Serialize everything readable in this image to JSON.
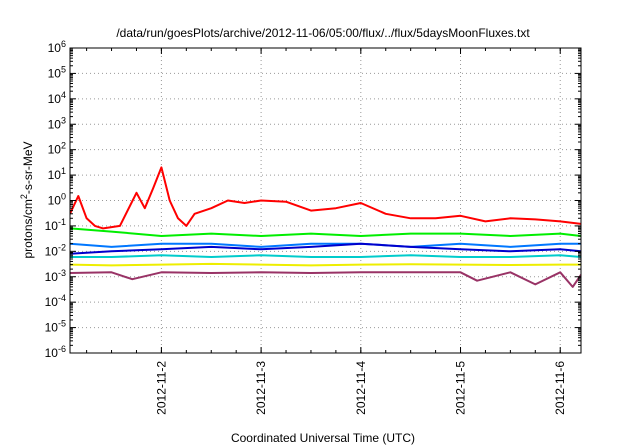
{
  "chart_data": {
    "type": "line",
    "title": "/data/run/goesPlots/archive/2012-11-06/05:00/flux/../flux/5daysMoonFluxes.txt",
    "xlabel": "Coordinated Universal Time (UTC)",
    "ylabel": {
      "base": "protons/cm",
      "sup": "2",
      "rest": "-s-sr-MeV"
    },
    "yscale": "log",
    "ylim_exponent": [
      -6,
      6
    ],
    "xlim": [
      "2012-11-01 02:00",
      "2012-11-06 05:00"
    ],
    "x_ticks": [
      {
        "label": "2012-11-2",
        "date": "2012-11-02"
      },
      {
        "label": "2012-11-3",
        "date": "2012-11-03"
      },
      {
        "label": "2012-11-4",
        "date": "2012-11-04"
      },
      {
        "label": "2012-11-5",
        "date": "2012-11-05"
      },
      {
        "label": "2012-11-6",
        "date": "2012-11-06"
      }
    ],
    "y_ticks": [
      {
        "base": "10",
        "exp": "-6"
      },
      {
        "base": "10",
        "exp": "-5"
      },
      {
        "base": "10",
        "exp": "-4"
      },
      {
        "base": "10",
        "exp": "-3"
      },
      {
        "base": "10",
        "exp": "-2"
      },
      {
        "base": "10",
        "exp": "-1"
      },
      {
        "base": "10",
        "exp": "0"
      },
      {
        "base": "10",
        "exp": "1"
      },
      {
        "base": "10",
        "exp": "2"
      },
      {
        "base": "10",
        "exp": "3"
      },
      {
        "base": "10",
        "exp": "4"
      },
      {
        "base": "10",
        "exp": "5"
      },
      {
        "base": "10",
        "exp": "6"
      }
    ],
    "grid": true,
    "legend": "none",
    "series": [
      {
        "color": "#ff0000",
        "x": [
          "2012-11-01 02:00",
          "2012-11-01 04:00",
          "2012-11-01 06:00",
          "2012-11-01 08:00",
          "2012-11-01 10:00",
          "2012-11-01 14:00",
          "2012-11-01 18:00",
          "2012-11-01 20:00",
          "2012-11-01 22:00",
          "2012-11-02 00:00",
          "2012-11-02 02:00",
          "2012-11-02 04:00",
          "2012-11-02 06:00",
          "2012-11-02 08:00",
          "2012-11-02 12:00",
          "2012-11-02 16:00",
          "2012-11-02 20:00",
          "2012-11-03 00:00",
          "2012-11-03 06:00",
          "2012-11-03 12:00",
          "2012-11-03 18:00",
          "2012-11-04 00:00",
          "2012-11-04 06:00",
          "2012-11-04 12:00",
          "2012-11-04 18:00",
          "2012-11-05 00:00",
          "2012-11-05 06:00",
          "2012-11-05 12:00",
          "2012-11-05 18:00",
          "2012-11-06 00:00",
          "2012-11-06 05:00"
        ],
        "y": [
          0.3,
          1.5,
          0.2,
          0.1,
          0.08,
          0.1,
          2.0,
          0.5,
          3.0,
          20.0,
          1.0,
          0.2,
          0.1,
          0.3,
          0.5,
          1.0,
          0.8,
          1.0,
          0.9,
          0.4,
          0.5,
          0.8,
          0.3,
          0.2,
          0.2,
          0.25,
          0.15,
          0.2,
          0.18,
          0.15,
          0.12
        ]
      },
      {
        "color": "#00ee00",
        "x": [
          "2012-11-01 02:00",
          "2012-11-01 12:00",
          "2012-11-02 00:00",
          "2012-11-02 12:00",
          "2012-11-03 00:00",
          "2012-11-03 12:00",
          "2012-11-04 00:00",
          "2012-11-04 12:00",
          "2012-11-05 00:00",
          "2012-11-05 12:00",
          "2012-11-06 00:00",
          "2012-11-06 05:00"
        ],
        "y": [
          0.08,
          0.06,
          0.04,
          0.05,
          0.04,
          0.05,
          0.04,
          0.05,
          0.05,
          0.04,
          0.05,
          0.04
        ]
      },
      {
        "color": "#0077ff",
        "x": [
          "2012-11-01 02:00",
          "2012-11-01 12:00",
          "2012-11-02 00:00",
          "2012-11-02 12:00",
          "2012-11-03 00:00",
          "2012-11-03 12:00",
          "2012-11-04 00:00",
          "2012-11-04 12:00",
          "2012-11-05 00:00",
          "2012-11-05 12:00",
          "2012-11-06 00:00",
          "2012-11-06 05:00"
        ],
        "y": [
          0.02,
          0.015,
          0.02,
          0.02,
          0.015,
          0.02,
          0.02,
          0.015,
          0.02,
          0.015,
          0.02,
          0.02
        ]
      },
      {
        "color": "#0000cc",
        "x": [
          "2012-11-01 02:00",
          "2012-11-01 12:00",
          "2012-11-02 00:00",
          "2012-11-02 12:00",
          "2012-11-03 00:00",
          "2012-11-03 12:00",
          "2012-11-04 00:00",
          "2012-11-04 12:00",
          "2012-11-05 00:00",
          "2012-11-05 12:00",
          "2012-11-06 00:00",
          "2012-11-06 05:00"
        ],
        "y": [
          0.008,
          0.01,
          0.012,
          0.015,
          0.012,
          0.015,
          0.02,
          0.015,
          0.012,
          0.01,
          0.012,
          0.01
        ]
      },
      {
        "color": "#00cccc",
        "x": [
          "2012-11-01 02:00",
          "2012-11-01 12:00",
          "2012-11-02 00:00",
          "2012-11-02 12:00",
          "2012-11-03 00:00",
          "2012-11-03 12:00",
          "2012-11-04 00:00",
          "2012-11-04 12:00",
          "2012-11-05 00:00",
          "2012-11-05 12:00",
          "2012-11-06 00:00",
          "2012-11-06 05:00"
        ],
        "y": [
          0.006,
          0.006,
          0.007,
          0.006,
          0.007,
          0.006,
          0.006,
          0.007,
          0.006,
          0.006,
          0.007,
          0.006
        ]
      },
      {
        "color": "#eeee00",
        "x": [
          "2012-11-01 02:00",
          "2012-11-01 12:00",
          "2012-11-02 00:00",
          "2012-11-02 12:00",
          "2012-11-03 00:00",
          "2012-11-03 12:00",
          "2012-11-04 00:00",
          "2012-11-04 12:00",
          "2012-11-05 00:00",
          "2012-11-05 12:00",
          "2012-11-06 00:00",
          "2012-11-06 05:00"
        ],
        "y": [
          0.003,
          0.0028,
          0.003,
          0.0032,
          0.003,
          0.0028,
          0.003,
          0.0031,
          0.003,
          0.0029,
          0.003,
          0.003
        ]
      },
      {
        "color": "#993366",
        "x": [
          "2012-11-01 02:00",
          "2012-11-01 12:00",
          "2012-11-01 17:00",
          "2012-11-02 00:00",
          "2012-11-02 12:00",
          "2012-11-03 00:00",
          "2012-11-03 12:00",
          "2012-11-04 00:00",
          "2012-11-04 12:00",
          "2012-11-05 00:00",
          "2012-11-05 04:00",
          "2012-11-05 12:00",
          "2012-11-05 18:00",
          "2012-11-06 00:00",
          "2012-11-06 03:00",
          "2012-11-06 05:00"
        ],
        "y": [
          0.0014,
          0.0015,
          0.0008,
          0.0015,
          0.0014,
          0.0015,
          0.0014,
          0.0015,
          0.0015,
          0.0015,
          0.0007,
          0.0015,
          0.0005,
          0.0015,
          0.0004,
          0.0012
        ]
      }
    ]
  }
}
